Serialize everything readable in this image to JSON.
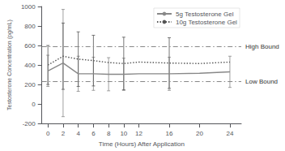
{
  "chart_data": {
    "type": "line",
    "xlabel": "Time (Hours) After Application",
    "ylabel": "Testosterone Concentration (pg/mL)",
    "x": [
      0,
      2,
      4,
      6,
      8,
      10,
      12,
      16,
      20,
      24
    ],
    "series": [
      {
        "name": "5g Testosterone Gel",
        "color": "#888888",
        "line_style": "solid",
        "values": [
          340,
          420,
          310,
          310,
          305,
          305,
          310,
          310,
          315,
          330
        ],
        "errors": [
          160,
          550,
          180,
          170,
          170,
          165,
          0,
          170,
          0,
          160
        ]
      },
      {
        "name": "10g Testosterone Gel",
        "color": "#555555",
        "line_style": "dotted",
        "values": [
          400,
          490,
          460,
          445,
          425,
          415,
          430,
          420,
          415,
          430
        ],
        "errors": [
          200,
          340,
          280,
          260,
          0,
          270,
          0,
          260,
          0,
          0
        ]
      }
    ],
    "reference_lines": [
      {
        "value": 590,
        "label": "High Bound",
        "color": "#888888",
        "line_style": "dashdot"
      },
      {
        "value": 230,
        "label": "Low Bound",
        "color": "#888888",
        "line_style": "dashdot"
      }
    ],
    "xlim": [
      -0.8,
      25.5
    ],
    "xticks": [
      0,
      2,
      4,
      6,
      8,
      10,
      12,
      16,
      20,
      24
    ],
    "ylim": [
      -200,
      1000
    ],
    "yticks": [
      -200,
      0,
      200,
      400,
      600,
      800,
      1000
    ],
    "grid": false,
    "legend": "upper right"
  }
}
